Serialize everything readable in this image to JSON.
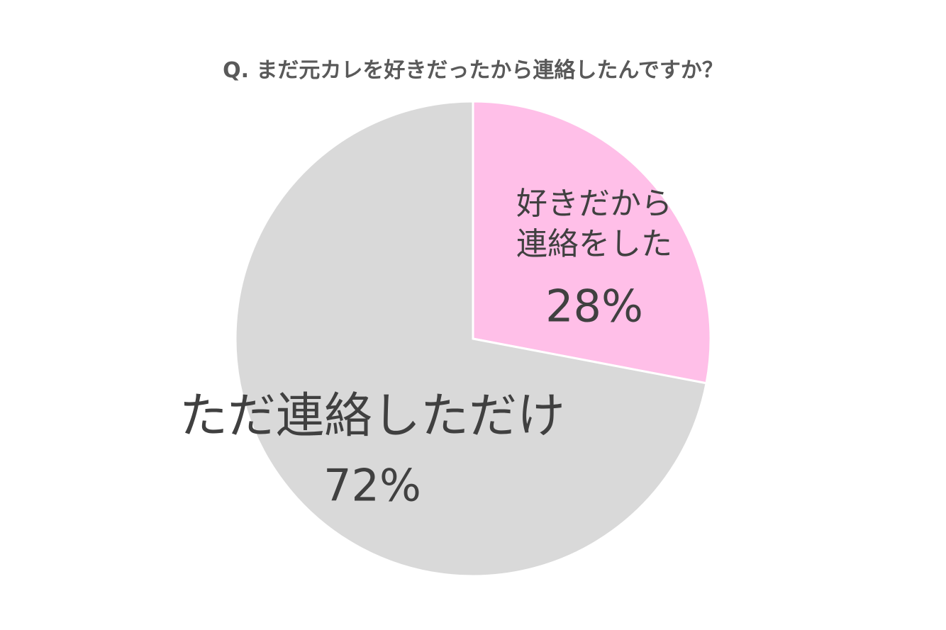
{
  "chart_data": {
    "type": "pie",
    "title": "Q. まだ元カレを好きだったから連絡したんですか？",
    "categories": [
      "好きだから\n連絡をした",
      "ただ連絡しただけ"
    ],
    "values": [
      28,
      72
    ],
    "value_labels": [
      "28%",
      "72%"
    ],
    "colors": [
      "#ffbfe8",
      "#d9d9d9"
    ]
  }
}
